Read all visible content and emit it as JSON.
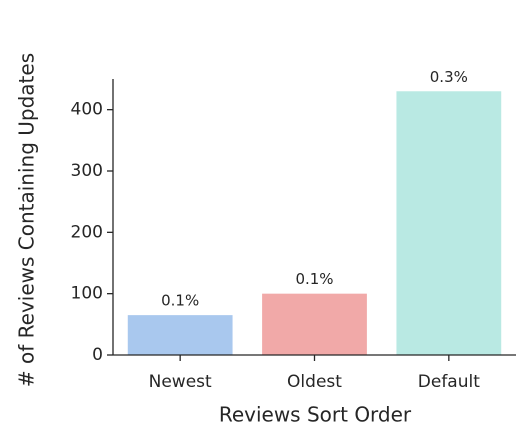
{
  "chart_data": {
    "type": "bar",
    "xlabel": "Reviews Sort Order",
    "ylabel": "# of Reviews Containing Updates",
    "categories": [
      "Newest",
      "Oldest",
      "Default"
    ],
    "values": [
      65,
      100,
      430
    ],
    "colors": [
      "#a9c8ee",
      "#f1a9a8",
      "#b9e9e3"
    ],
    "annotations": [
      "0.1%",
      "0.1%",
      "0.3%"
    ],
    "ylim": [
      0,
      450
    ],
    "yticks": [
      0,
      100,
      200,
      300,
      400
    ],
    "grid": false
  }
}
